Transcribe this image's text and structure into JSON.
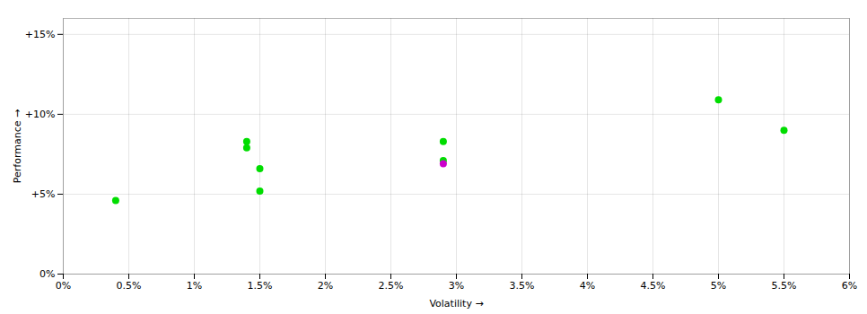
{
  "chart_data": {
    "type": "scatter",
    "xlabel": "Volatility",
    "ylabel": "Performance",
    "xlim": [
      0,
      0.06
    ],
    "ylim": [
      0,
      0.16
    ],
    "xticks": [
      {
        "value": 0,
        "label": "0%"
      },
      {
        "value": 0.005,
        "label": "0.5%"
      },
      {
        "value": 0.01,
        "label": "1%"
      },
      {
        "value": 0.015,
        "label": "1.5%"
      },
      {
        "value": 0.02,
        "label": "2%"
      },
      {
        "value": 0.025,
        "label": "2.5%"
      },
      {
        "value": 0.03,
        "label": "3%"
      },
      {
        "value": 0.035,
        "label": "3.5%"
      },
      {
        "value": 0.04,
        "label": "4%"
      },
      {
        "value": 0.045,
        "label": "4.5%"
      },
      {
        "value": 0.05,
        "label": "5%"
      },
      {
        "value": 0.055,
        "label": "5.5%"
      },
      {
        "value": 0.06,
        "label": "6%"
      }
    ],
    "yticks": [
      {
        "value": 0,
        "label": "0%"
      },
      {
        "value": 0.05,
        "label": "+5%"
      },
      {
        "value": 0.1,
        "label": "+10%"
      },
      {
        "value": 0.15,
        "label": "+15%"
      }
    ],
    "grid": true,
    "series": [
      {
        "color": "#00dd00",
        "x": [
          0.004,
          0.014,
          0.014,
          0.015,
          0.015,
          0.029,
          0.029,
          0.05,
          0.055
        ],
        "values": [
          0.046,
          0.083,
          0.079,
          0.066,
          0.052,
          0.083,
          0.071,
          0.109,
          0.09
        ]
      },
      {
        "color": "#cc00cc",
        "x": [
          0.029
        ],
        "values": [
          0.069
        ]
      }
    ]
  }
}
